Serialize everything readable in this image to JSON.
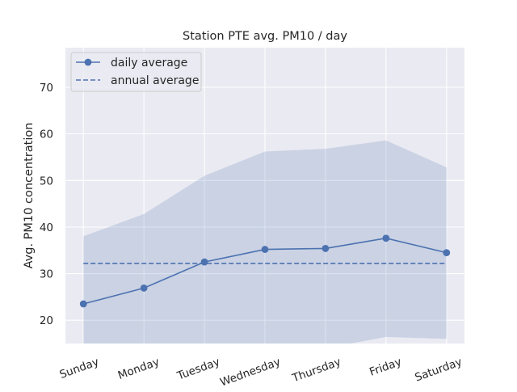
{
  "chart_data": {
    "type": "line",
    "title": "Station PTE avg. PM10 / day",
    "xlabel": "",
    "ylabel": "Avg. PM10 concentration",
    "categories": [
      "Sunday",
      "Monday",
      "Tuesday",
      "Wednesday",
      "Thursday",
      "Friday",
      "Saturday"
    ],
    "ylim": [
      15,
      78.5
    ],
    "yticks": [
      20,
      30,
      40,
      50,
      60,
      70
    ],
    "grid": true,
    "legend_position": "top-left",
    "series": [
      {
        "name": "daily average",
        "style": "line-with-markers",
        "color": "#4c72b0",
        "values": [
          23.5,
          26.9,
          32.5,
          35.2,
          35.4,
          37.6,
          34.5
        ]
      },
      {
        "name": "annual average",
        "style": "dashed",
        "color": "#4c72b0",
        "values": [
          32.2,
          32.2,
          32.2,
          32.2,
          32.2,
          32.2,
          32.2
        ]
      }
    ],
    "band": {
      "color": "#4c72b0",
      "upper": [
        38.0,
        42.8,
        51.0,
        56.2,
        56.8,
        58.6,
        52.8
      ],
      "lower": [
        10.0,
        8.0,
        10.5,
        12.5,
        14.0,
        16.4,
        16.0
      ]
    },
    "colors": {
      "plot_background": "#eaeaf2",
      "grid": "#ffffff",
      "text": "#262626"
    }
  }
}
